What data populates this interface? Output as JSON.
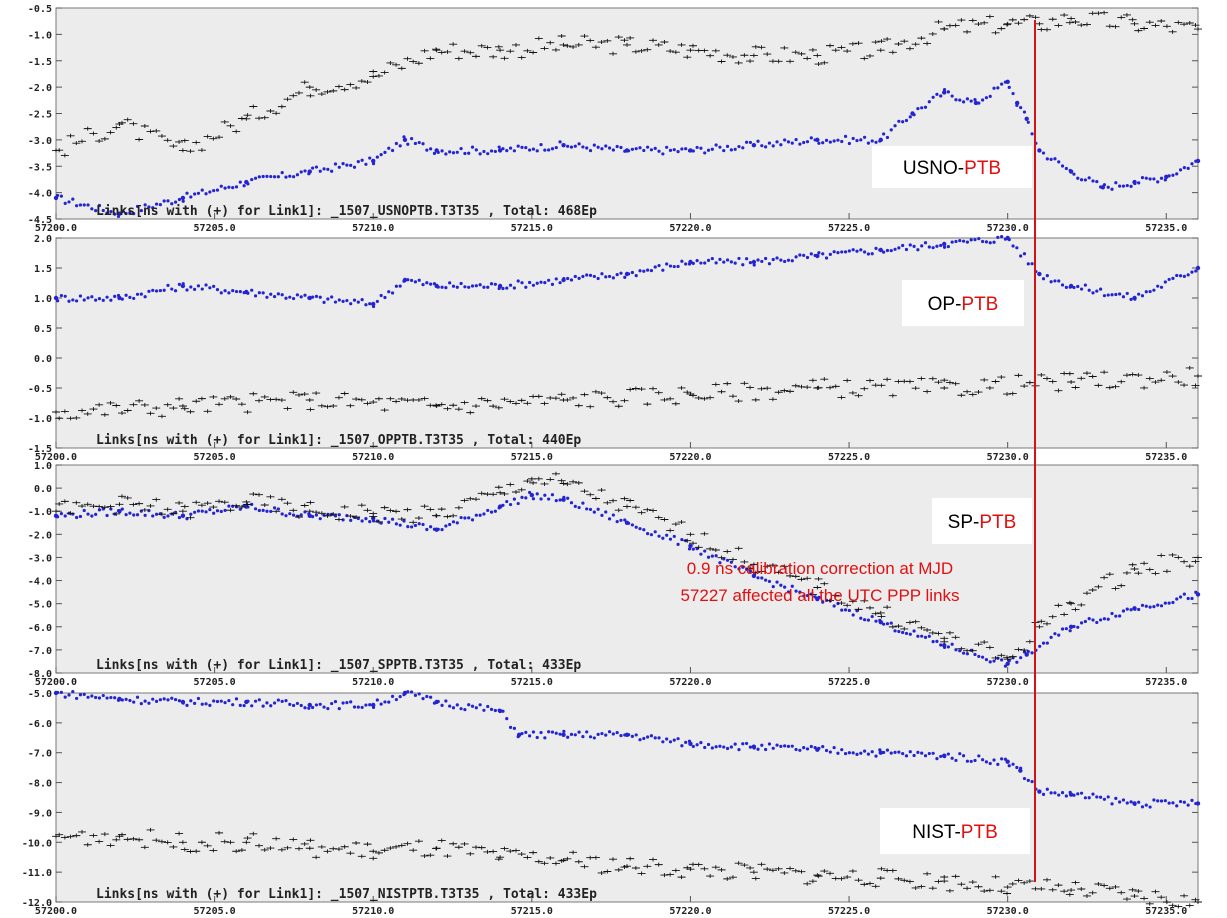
{
  "colors": {
    "rapid": "#2424d0",
    "cross": "#111111",
    "marker": "#d41414",
    "accent_label": "#e01010"
  },
  "chart_data": [
    {
      "type": "scatter",
      "caption": "Links[ns with (+) for Link1]: _1507_USNOPTB.T3T35 , Total: 468Ep",
      "label_left": "USNO-",
      "label_right": "PTB",
      "xlim": [
        57200,
        57236
      ],
      "ylim": [
        -4.5,
        -0.5
      ],
      "ytick_labels": [
        "-0.5",
        "-1.0",
        "-1.5",
        "-2.0",
        "-2.5",
        "-3.0",
        "-3.5",
        "-4.0",
        "-4.5"
      ],
      "xtick_labels": [
        "57200.0",
        "57205.0",
        "57210.0",
        "57215.0",
        "57220.0",
        "57225.0",
        "57230.0",
        "57235.0"
      ],
      "series": [
        {
          "marker": "dot",
          "x": [
            57200,
            57202,
            57204,
            57206,
            57208,
            57210,
            57211,
            57212,
            57214,
            57216,
            57218,
            57220,
            57222,
            57224,
            57226,
            57227,
            57228,
            57229,
            57230,
            57230.3,
            57230.6,
            57231,
            57232,
            57233,
            57234,
            57235,
            57236
          ],
          "y": [
            -4.1,
            -4.4,
            -4.1,
            -3.8,
            -3.6,
            -3.4,
            -3.0,
            -3.2,
            -3.2,
            -3.1,
            -3.2,
            -3.2,
            -3.1,
            -3.0,
            -3.0,
            -2.5,
            -2.1,
            -2.3,
            -1.9,
            -2.3,
            -2.6,
            -3.2,
            -3.6,
            -3.9,
            -3.8,
            -3.7,
            -3.4
          ]
        },
        {
          "marker": "cross",
          "x": [
            57200,
            57202,
            57204,
            57206,
            57208,
            57210,
            57212,
            57214,
            57216,
            57218,
            57220,
            57222,
            57224,
            57226,
            57228,
            57230,
            57231,
            57232,
            57234,
            57236
          ],
          "y": [
            -3.2,
            -2.7,
            -3.2,
            -2.6,
            -2.0,
            -1.8,
            -1.3,
            -1.3,
            -1.2,
            -1.2,
            -1.3,
            -1.4,
            -1.4,
            -1.3,
            -0.9,
            -0.8,
            -0.8,
            -0.7,
            -0.8,
            -0.9
          ]
        }
      ]
    },
    {
      "type": "scatter",
      "caption": "Links[ns with (+) for Link1]: _1507_OPPTB.T3T35 , Total: 440Ep",
      "label_left": "OP-",
      "label_right": "PTB",
      "xlim": [
        57200,
        57236
      ],
      "ylim": [
        -1.5,
        2.0
      ],
      "ytick_labels": [
        "2.0",
        "1.5",
        "1.0",
        "0.5",
        "0.0",
        "-0.5",
        "-1.0",
        "-1.5"
      ],
      "xtick_labels": [
        "57200.0",
        "57205.0",
        "57210.0",
        "57215.0",
        "57220.0",
        "57225.0",
        "57230.0",
        "57235.0"
      ],
      "series": [
        {
          "marker": "dot",
          "x": [
            57200,
            57202,
            57204,
            57206,
            57208,
            57210,
            57211,
            57212,
            57214,
            57216,
            57218,
            57220,
            57222,
            57224,
            57226,
            57228,
            57230,
            57231,
            57232,
            57234,
            57236
          ],
          "y": [
            1.0,
            1.0,
            1.2,
            1.1,
            1.0,
            0.9,
            1.3,
            1.2,
            1.2,
            1.3,
            1.4,
            1.6,
            1.6,
            1.7,
            1.8,
            1.9,
            2.0,
            1.4,
            1.2,
            1.0,
            1.5
          ]
        },
        {
          "marker": "cross",
          "x": [
            57200,
            57204,
            57208,
            57212,
            57216,
            57220,
            57224,
            57228,
            57232,
            57236
          ],
          "y": [
            -0.9,
            -0.8,
            -0.7,
            -0.8,
            -0.7,
            -0.6,
            -0.5,
            -0.5,
            -0.4,
            -0.3
          ]
        }
      ]
    },
    {
      "type": "scatter",
      "caption": "Links[ns with (+) for Link1]: _1507_SPPTB.T3T35 , Total: 433Ep",
      "label_left": "SP-",
      "label_right": "PTB",
      "xlim": [
        57200,
        57236
      ],
      "ylim": [
        -8.0,
        1.0
      ],
      "ytick_labels": [
        "1.0",
        "0.0",
        "-1.0",
        "-2.0",
        "-3.0",
        "-4.0",
        "-5.0",
        "-6.0",
        "-7.0",
        "-8.0"
      ],
      "xtick_labels": [
        "57200.0",
        "57205.0",
        "57210.0",
        "57215.0",
        "57220.0",
        "57225.0",
        "57230.0",
        "57235.0"
      ],
      "series": [
        {
          "marker": "dot",
          "x": [
            57200,
            57202,
            57204,
            57206,
            57208,
            57210,
            57212,
            57214,
            57215,
            57216,
            57218,
            57220,
            57222,
            57224,
            57226,
            57228,
            57230,
            57230.6,
            57232,
            57234,
            57236
          ],
          "y": [
            -1.2,
            -1.0,
            -1.2,
            -0.8,
            -1.2,
            -1.3,
            -1.8,
            -0.8,
            -0.3,
            -0.5,
            -1.5,
            -2.5,
            -3.8,
            -4.8,
            -5.8,
            -6.8,
            -7.6,
            -7.2,
            -6.0,
            -5.2,
            -4.6
          ]
        },
        {
          "marker": "cross",
          "x": [
            57200,
            57202,
            57204,
            57206,
            57208,
            57210,
            57212,
            57214,
            57215,
            57216,
            57218,
            57220,
            57222,
            57224,
            57226,
            57228,
            57230,
            57231,
            57232,
            57234,
            57236
          ],
          "y": [
            -1.0,
            -0.7,
            -1.0,
            -0.6,
            -1.0,
            -1.1,
            -1.2,
            -0.2,
            0.4,
            0.2,
            -0.8,
            -2.0,
            -3.3,
            -4.3,
            -5.4,
            -6.5,
            -7.4,
            -6.0,
            -5.0,
            -3.5,
            -3.0
          ]
        }
      ]
    },
    {
      "type": "scatter",
      "caption": "Links[ns with (+) for Link1]: _1507_NISTPTB.T3T35 , Total: 433Ep",
      "label_left": "NIST-",
      "label_right": "PTB",
      "xlim": [
        57200,
        57236
      ],
      "ylim": [
        -12.0,
        -5.0
      ],
      "ytick_labels": [
        "-5.0",
        "-6.0",
        "-7.0",
        "-8.0",
        "-9.0",
        "-10.0",
        "-11.0",
        "-12.0"
      ],
      "xtick_labels": [
        "57200.0",
        "57205.0",
        "57210.0",
        "57215.0",
        "57220.0",
        "57225.0",
        "57230.0",
        "57235.0"
      ],
      "series": [
        {
          "marker": "dot",
          "x": [
            57200,
            57202,
            57204,
            57206,
            57208,
            57210,
            57211,
            57212,
            57214,
            57214.6,
            57216,
            57218,
            57220,
            57222,
            57224,
            57226,
            57228,
            57230,
            57230.4,
            57231,
            57232,
            57234,
            57236
          ],
          "y": [
            -5.0,
            -5.2,
            -5.3,
            -5.3,
            -5.4,
            -5.4,
            -5.0,
            -5.3,
            -5.6,
            -6.4,
            -6.4,
            -6.4,
            -6.7,
            -6.8,
            -6.9,
            -7.0,
            -7.1,
            -7.3,
            -7.6,
            -8.3,
            -8.4,
            -8.7,
            -8.7
          ]
        },
        {
          "marker": "cross",
          "x": [
            57200,
            57202,
            57204,
            57206,
            57208,
            57210,
            57212,
            57214,
            57216,
            57218,
            57220,
            57222,
            57224,
            57226,
            57228,
            57230,
            57232,
            57234,
            57236
          ],
          "y": [
            -9.8,
            -9.8,
            -10.0,
            -10.0,
            -10.2,
            -10.3,
            -10.2,
            -10.5,
            -10.6,
            -10.8,
            -10.9,
            -11.0,
            -11.1,
            -11.2,
            -11.3,
            -11.5,
            -11.6,
            -11.8,
            -12.0
          ]
        }
      ]
    }
  ],
  "annotation": {
    "line1": "0.9 ns calibration correction at MJD",
    "line2": "57227 affected all the UTC PPP links"
  }
}
